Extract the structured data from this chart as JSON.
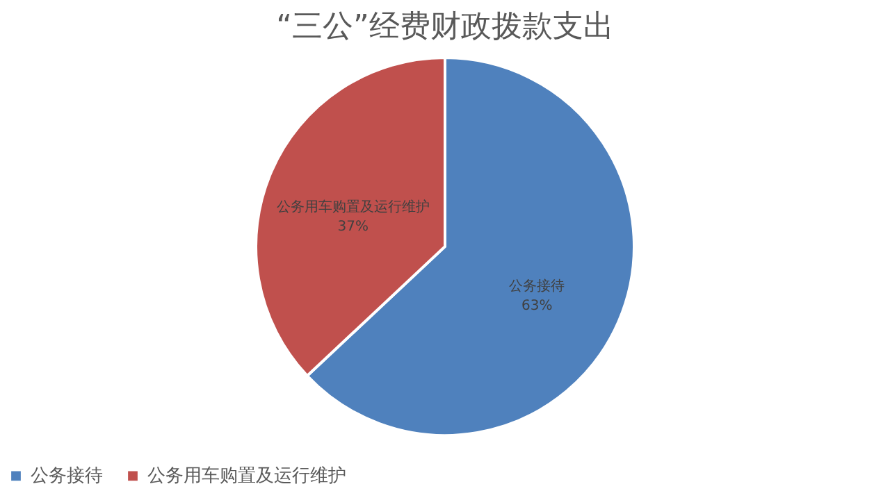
{
  "chart_data": {
    "type": "pie",
    "title": "“三公”经费财政拨款支出",
    "categories": [
      "公务接待",
      "公务用车购置及运行维护"
    ],
    "values": [
      63,
      37
    ],
    "colors": [
      "#4f81bd",
      "#c0504d"
    ],
    "value_labels": [
      "63%",
      "37%"
    ],
    "legend": "bottom"
  }
}
